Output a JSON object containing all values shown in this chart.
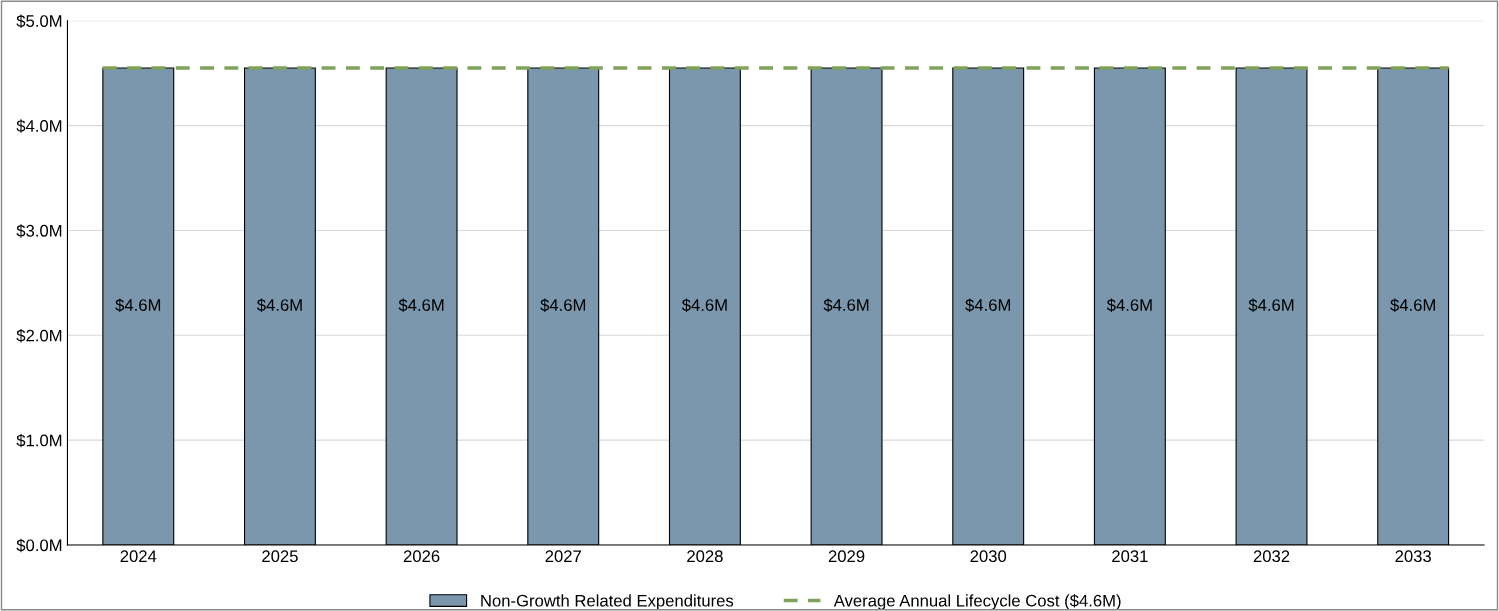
{
  "chart_data": {
    "type": "bar",
    "categories": [
      "2024",
      "2025",
      "2026",
      "2027",
      "2028",
      "2029",
      "2030",
      "2031",
      "2032",
      "2033"
    ],
    "series": [
      {
        "name": "Non-Growth Related Expenditures",
        "color": "#7a97ad",
        "values": [
          4.55,
          4.55,
          4.55,
          4.55,
          4.55,
          4.55,
          4.55,
          4.55,
          4.55,
          4.55
        ],
        "value_labels": [
          "$4.6M",
          "$4.6M",
          "$4.6M",
          "$4.6M",
          "$4.6M",
          "$4.6M",
          "$4.6M",
          "$4.6M",
          "$4.6M",
          "$4.6M"
        ]
      }
    ],
    "ref_lines": [
      {
        "axis": "y",
        "value": 4.55,
        "label": "Average Annual Lifecycle Cost ($4.6M)",
        "color": "#7fa35a",
        "line_style": "dashed"
      }
    ],
    "ylim": [
      0,
      5
    ],
    "yticks": [
      {
        "value": 0,
        "label": "$0.0M"
      },
      {
        "value": 1,
        "label": "$1.0M"
      },
      {
        "value": 2,
        "label": "$2.0M"
      },
      {
        "value": 3,
        "label": "$3.0M"
      },
      {
        "value": 4,
        "label": "$4.0M"
      },
      {
        "value": 5,
        "label": "$5.0M"
      }
    ],
    "grid": "y",
    "legend": "bottom"
  }
}
